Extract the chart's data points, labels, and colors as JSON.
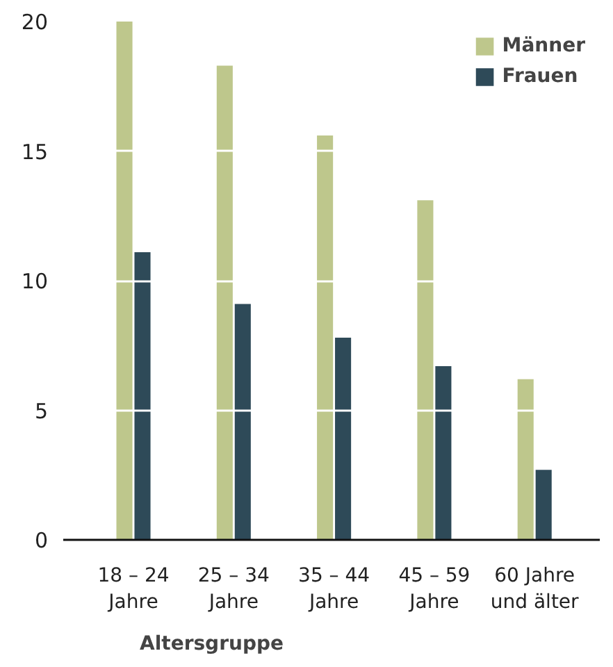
{
  "chart_data": {
    "type": "bar",
    "xlabel": "Altersgruppe",
    "categories": [
      "18 – 24\nJahre",
      "25 – 34\nJahre",
      "35 – 44\nJahre",
      "45 – 59\nJahre",
      "60 Jahre\nund älter"
    ],
    "series": [
      {
        "name": "Männer",
        "color": "#bec78c",
        "values": [
          20.0,
          18.3,
          15.6,
          13.1,
          6.2
        ]
      },
      {
        "name": "Frauen",
        "color": "#2e4a58",
        "values": [
          11.1,
          9.1,
          7.8,
          6.7,
          2.7
        ]
      }
    ],
    "ylim": [
      0,
      20
    ],
    "yticks": [
      0,
      5,
      10,
      15,
      20
    ],
    "grid": "y",
    "legend": "top right"
  }
}
